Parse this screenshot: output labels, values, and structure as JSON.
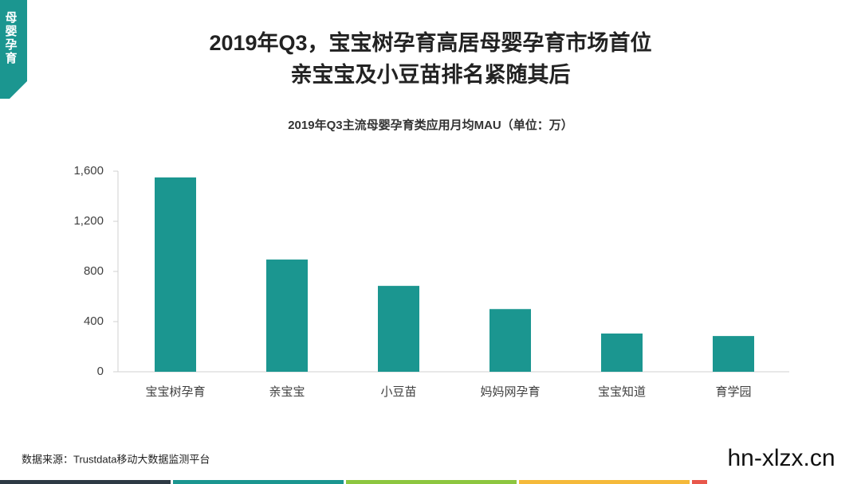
{
  "side_tag": "母婴孕育",
  "headline": [
    "2019年Q3，宝宝树孕育高居母婴孕育市场首位",
    "亲宝宝及小豆苗排名紧随其后"
  ],
  "source": "数据来源：Trustdata移动大数据监测平台",
  "watermark": "hn-xlzx.cn",
  "chart_data": {
    "type": "bar",
    "title": "2019年Q3主流母婴孕育类应用月均MAU（单位：万）",
    "categories": [
      "宝宝树孕育",
      "亲宝宝",
      "小豆苗",
      "妈妈网孕育",
      "宝宝知道",
      "育学园"
    ],
    "values": [
      1550,
      895,
      685,
      500,
      305,
      285
    ],
    "color": "#1b9690",
    "ylim": [
      0,
      1600
    ],
    "yticks": [
      0,
      400,
      800,
      {
        "value": 1200,
        "label": "1,200"
      },
      {
        "value": 1600,
        "label": "1,600"
      }
    ],
    "grid": false
  }
}
